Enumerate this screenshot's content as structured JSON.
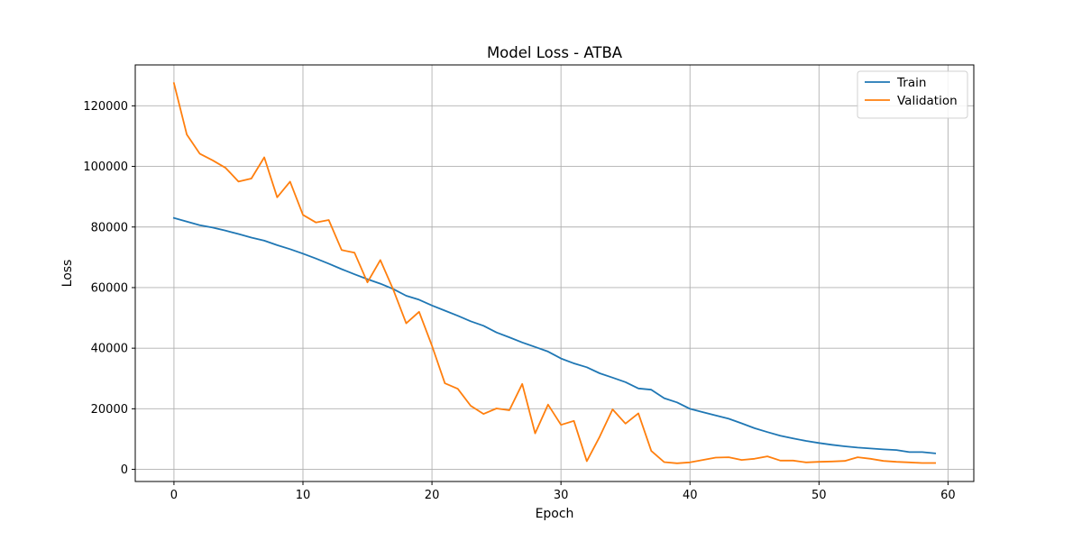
{
  "chart_data": {
    "type": "line",
    "title": "Model Loss - ATBA",
    "xlabel": "Epoch",
    "ylabel": "Loss",
    "xlim": [
      -3,
      62
    ],
    "ylim": [
      -4000,
      133500
    ],
    "xticks": [
      0,
      10,
      20,
      30,
      40,
      50,
      60
    ],
    "yticks": [
      0,
      20000,
      40000,
      60000,
      80000,
      100000,
      120000
    ],
    "grid": true,
    "legend_position": "upper right",
    "x": [
      0,
      1,
      2,
      3,
      4,
      5,
      6,
      7,
      8,
      9,
      10,
      11,
      12,
      13,
      14,
      15,
      16,
      17,
      18,
      19,
      20,
      21,
      22,
      23,
      24,
      25,
      26,
      27,
      28,
      29,
      30,
      31,
      32,
      33,
      34,
      35,
      36,
      37,
      38,
      39,
      40,
      41,
      42,
      43,
      44,
      45,
      46,
      47,
      48,
      49,
      50,
      51,
      52,
      53,
      54,
      55,
      56,
      57,
      58,
      59
    ],
    "series": [
      {
        "name": "Train",
        "color": "#1f77b4",
        "values": [
          83000,
          81800,
          80600,
          79800,
          78800,
          77700,
          76500,
          75500,
          74000,
          72700,
          71200,
          69600,
          67900,
          66100,
          64400,
          62800,
          61300,
          59500,
          57300,
          56000,
          54100,
          52400,
          50700,
          48900,
          47400,
          45200,
          43600,
          41900,
          40400,
          38900,
          36600,
          35000,
          33700,
          31700,
          30300,
          28800,
          26700,
          26300,
          23500,
          22100,
          20000,
          18900,
          17800,
          16700,
          15200,
          13600,
          12300,
          11100,
          10200,
          9400,
          8700,
          8100,
          7600,
          7200,
          6900,
          6600,
          6400,
          5700,
          5700,
          5300
        ]
      },
      {
        "name": "Validation",
        "color": "#ff7f0e",
        "values": [
          127500,
          110500,
          104200,
          102000,
          99500,
          95000,
          96000,
          103000,
          89800,
          95000,
          84000,
          81500,
          82300,
          72400,
          71500,
          61700,
          69100,
          59300,
          48200,
          52000,
          40800,
          28400,
          26600,
          21000,
          18300,
          20100,
          19500,
          28200,
          11900,
          21400,
          14700,
          16000,
          2700,
          10800,
          19800,
          15100,
          18500,
          6100,
          2400,
          2000,
          2300,
          3100,
          3900,
          4000,
          3100,
          3500,
          4300,
          2900,
          2900,
          2300,
          2500,
          2600,
          2800,
          4000,
          3500,
          2800,
          2500,
          2300,
          2100,
          2100
        ]
      }
    ]
  }
}
